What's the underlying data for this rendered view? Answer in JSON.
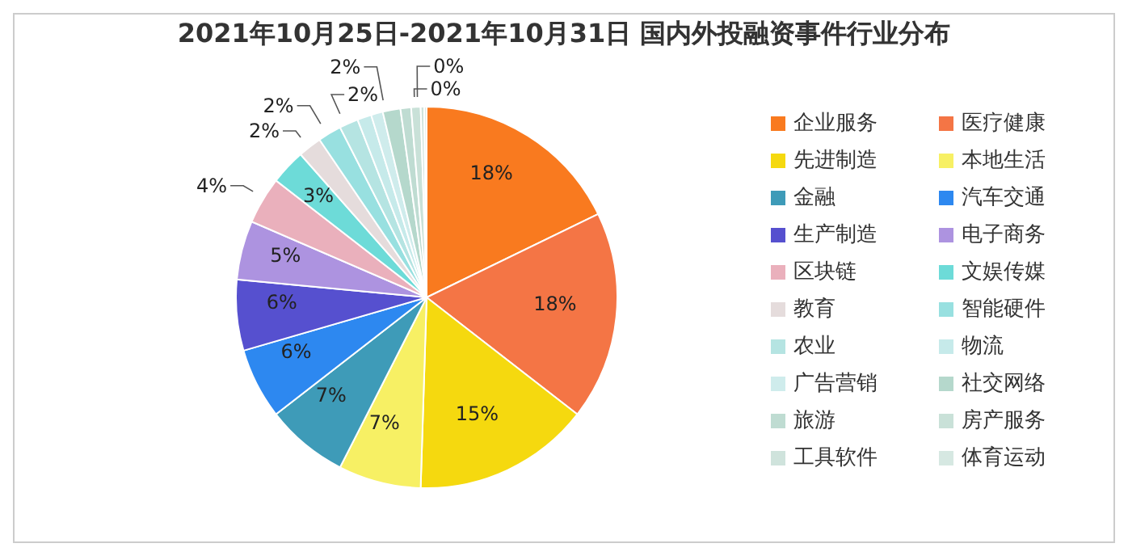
{
  "chart_data": {
    "type": "pie",
    "title": "2021年10月25日-2021年10月31日 国内外投融资事件行业分布",
    "categories": [
      "企业服务",
      "医疗健康",
      "先进制造",
      "本地生活",
      "金融",
      "汽车交通",
      "生产制造",
      "电子商务",
      "区块链",
      "文娱传媒",
      "教育",
      "智能硬件",
      "农业",
      "物流",
      "广告营销",
      "社交网络",
      "旅游",
      "房产服务",
      "工具软件",
      "体育运动"
    ],
    "values": [
      17.8,
      17.7,
      15,
      7,
      7,
      6,
      6,
      5,
      4,
      3,
      2,
      2,
      1.6,
      1.2,
      1,
      1.5,
      0.9,
      0.8,
      0.3,
      0.2
    ],
    "value_labels": [
      "18%",
      "18%",
      "15%",
      "7%",
      "7%",
      "6%",
      "6%",
      "5%",
      "4%",
      "3%",
      "2%",
      "2%",
      "2%",
      null,
      null,
      "2%",
      null,
      null,
      "0%",
      "0%"
    ],
    "colors": [
      "#f97a1f",
      "#f47545",
      "#f5d90f",
      "#f7f064",
      "#3e9bb8",
      "#2d88f0",
      "#5650cf",
      "#ad93e0",
      "#eab0bc",
      "#6ddbd8",
      "#e5dcdc",
      "#98e0e0",
      "#b5e4e2",
      "#c6eaea",
      "#cfecec",
      "#b5d8cc",
      "#bfdcd2",
      "#c9e1d8",
      "#cfe3dc",
      "#d6e8e2"
    ],
    "legend": "right"
  }
}
